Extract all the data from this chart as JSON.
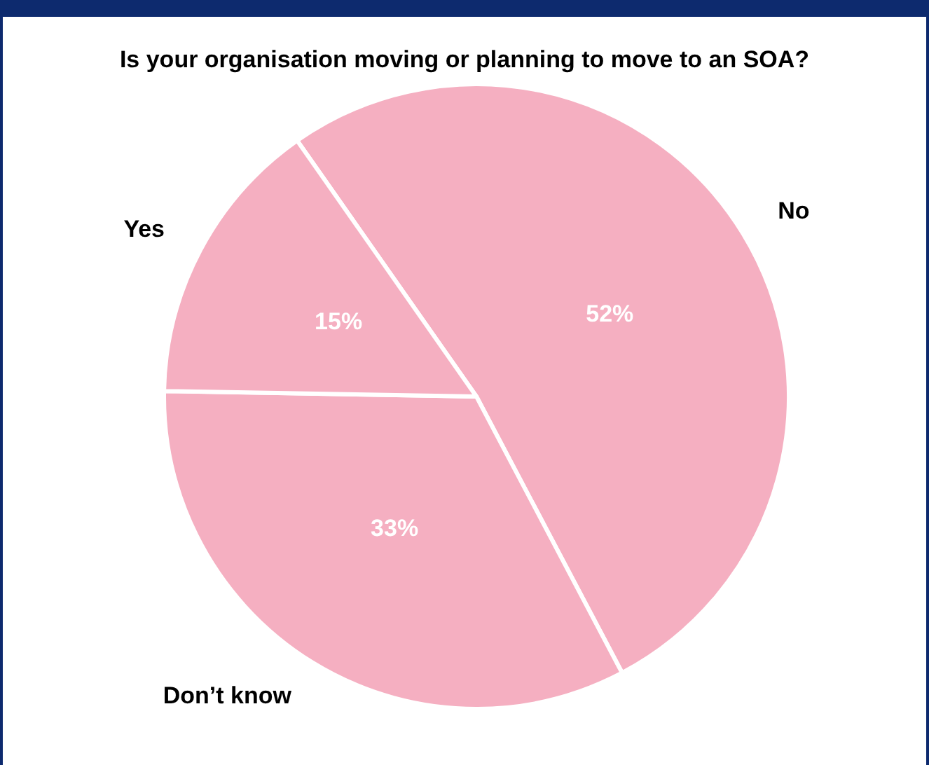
{
  "chart_data": {
    "type": "pie",
    "title": "Is your organisation moving or planning to move to an SOA?",
    "categories": [
      "No",
      "Don’t know",
      "Yes"
    ],
    "values": [
      52,
      33,
      15
    ],
    "value_labels": [
      "52%",
      "33%",
      "15%"
    ],
    "colors": [
      "#f5afc1",
      "#f5afc1",
      "#f5afc1"
    ]
  }
}
